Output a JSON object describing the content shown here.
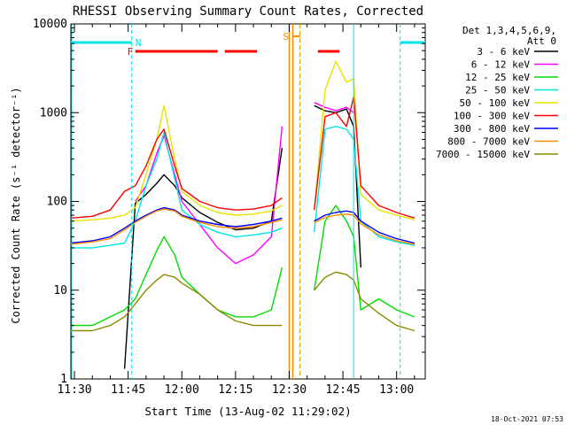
{
  "chart_data": {
    "type": "line",
    "title": "RHESSI Observing Summary Count Rates, Corrected",
    "xlabel": "Start Time (13-Aug-02 11:29:02)",
    "ylabel": "Corrected Count Rate (s⁻¹ detector⁻¹)",
    "yscale": "log",
    "ylim": [
      1,
      10000
    ],
    "xlim": [
      "11:29",
      "13:08"
    ],
    "x_ticks": [
      "11:30",
      "11:45",
      "12:00",
      "12:15",
      "12:30",
      "12:45",
      "13:00"
    ],
    "y_ticks": [
      "1",
      "10",
      "100",
      "1000",
      "10000"
    ],
    "legend_header": [
      "Det 1,3,4,5,6,9,",
      "Att 0"
    ],
    "legend_placement": "right",
    "footer_date": "18-Oct-2021 07:53",
    "flags": [
      {
        "label": "N",
        "color": "#00e5e5"
      },
      {
        "label": "F",
        "color": "#ff0000"
      },
      {
        "label": "S",
        "color": "#ff8c00"
      }
    ],
    "series": [
      {
        "name": "3 - 6 keV",
        "color": "#000000",
        "x": [
          "11:29",
          "11:35",
          "11:40",
          "11:44",
          "11:47",
          "11:50",
          "11:53",
          "11:55",
          "11:58",
          "12:00",
          "12:05",
          "12:10",
          "12:15",
          "12:20",
          "12:25",
          "12:28",
          "12:32",
          "12:37",
          "12:40",
          "12:43",
          "12:46",
          "12:48",
          "12:50",
          "12:55",
          "13:00",
          "13:05"
        ],
        "y": [
          null,
          null,
          null,
          1.3,
          95,
          120,
          160,
          200,
          150,
          110,
          75,
          58,
          48,
          50,
          60,
          400,
          null,
          1200,
          1050,
          1000,
          1100,
          700,
          18,
          null,
          null,
          null
        ]
      },
      {
        "name": "6 - 12 keV",
        "color": "#ff00ff",
        "x": [
          "11:29",
          "11:44",
          "11:47",
          "11:50",
          "11:53",
          "11:55",
          "11:58",
          "12:00",
          "12:05",
          "12:10",
          "12:15",
          "12:20",
          "12:25",
          "12:28",
          "12:32",
          "12:37",
          "12:40",
          "12:43",
          "12:46",
          "12:48",
          "12:50",
          "12:55",
          "13:00",
          "13:05"
        ],
        "y": [
          null,
          null,
          100,
          150,
          350,
          550,
          200,
          100,
          55,
          30,
          20,
          25,
          40,
          700,
          null,
          1300,
          1150,
          1050,
          1150,
          1000,
          null,
          null,
          null,
          null
        ]
      },
      {
        "name": "12 - 25 keV",
        "color": "#00dd00",
        "x": [
          "11:29",
          "11:35",
          "11:40",
          "11:44",
          "11:47",
          "11:50",
          "11:53",
          "11:55",
          "11:58",
          "12:00",
          "12:05",
          "12:10",
          "12:15",
          "12:20",
          "12:25",
          "12:28",
          "12:32",
          "12:37",
          "12:40",
          "12:43",
          "12:46",
          "12:48",
          "12:50",
          "12:55",
          "13:00",
          "13:05"
        ],
        "y": [
          4,
          4,
          5,
          6,
          8,
          15,
          28,
          40,
          25,
          14,
          9,
          6,
          5,
          5,
          6,
          18,
          null,
          10,
          60,
          90,
          60,
          40,
          6,
          8,
          6,
          5
        ]
      },
      {
        "name": "25 - 50 keV",
        "color": "#00e5e5",
        "x": [
          "11:29",
          "11:35",
          "11:40",
          "11:44",
          "11:47",
          "11:50",
          "11:53",
          "11:55",
          "11:58",
          "12:00",
          "12:05",
          "12:10",
          "12:15",
          "12:20",
          "12:25",
          "12:28",
          "12:32",
          "12:37",
          "12:40",
          "12:43",
          "12:46",
          "12:48",
          "12:50",
          "12:55",
          "13:00",
          "13:05"
        ],
        "y": [
          30,
          30,
          32,
          34,
          60,
          150,
          300,
          600,
          180,
          80,
          55,
          45,
          40,
          42,
          45,
          50,
          null,
          45,
          650,
          700,
          650,
          500,
          60,
          40,
          35,
          32
        ]
      },
      {
        "name": "50 - 100 keV",
        "color": "#e5e500",
        "x": [
          "11:29",
          "11:35",
          "11:40",
          "11:44",
          "11:47",
          "11:50",
          "11:53",
          "11:55",
          "11:58",
          "12:00",
          "12:05",
          "12:10",
          "12:15",
          "12:20",
          "12:25",
          "12:28",
          "12:32",
          "12:37",
          "12:40",
          "12:43",
          "12:46",
          "12:48",
          "12:50",
          "12:55",
          "13:00",
          "13:05"
        ],
        "y": [
          60,
          62,
          65,
          70,
          85,
          200,
          500,
          1200,
          300,
          130,
          90,
          75,
          70,
          72,
          78,
          90,
          null,
          80,
          1800,
          3800,
          2200,
          2400,
          120,
          80,
          70,
          62
        ]
      },
      {
        "name": "100 - 300 keV",
        "color": "#ff0000",
        "x": [
          "11:29",
          "11:35",
          "11:40",
          "11:44",
          "11:47",
          "11:50",
          "11:53",
          "11:55",
          "11:58",
          "12:00",
          "12:05",
          "12:10",
          "12:15",
          "12:20",
          "12:25",
          "12:28",
          "12:32",
          "12:37",
          "12:40",
          "12:43",
          "12:46",
          "12:48",
          "12:50",
          "12:55",
          "13:00",
          "13:05"
        ],
        "y": [
          65,
          68,
          80,
          130,
          150,
          250,
          500,
          650,
          250,
          140,
          100,
          85,
          80,
          82,
          90,
          110,
          null,
          80,
          900,
          1000,
          700,
          1500,
          150,
          90,
          75,
          65
        ]
      },
      {
        "name": "300 - 800 keV",
        "color": "#0000ff",
        "x": [
          "11:29",
          "11:35",
          "11:40",
          "11:44",
          "11:47",
          "11:50",
          "11:53",
          "11:55",
          "11:58",
          "12:00",
          "12:05",
          "12:10",
          "12:15",
          "12:20",
          "12:25",
          "12:28",
          "12:32",
          "12:37",
          "12:40",
          "12:43",
          "12:46",
          "12:48",
          "12:50",
          "12:55",
          "13:00",
          "13:05"
        ],
        "y": [
          34,
          36,
          40,
          50,
          60,
          70,
          80,
          85,
          80,
          70,
          60,
          55,
          52,
          55,
          60,
          65,
          null,
          60,
          70,
          75,
          78,
          75,
          60,
          45,
          38,
          34
        ]
      },
      {
        "name": "800 - 7000 keV",
        "color": "#ff8c00",
        "x": [
          "11:29",
          "11:35",
          "11:40",
          "11:44",
          "11:47",
          "11:50",
          "11:53",
          "11:55",
          "11:58",
          "12:00",
          "12:05",
          "12:10",
          "12:15",
          "12:20",
          "12:25",
          "12:28",
          "12:32",
          "12:37",
          "12:40",
          "12:43",
          "12:46",
          "12:48",
          "12:50",
          "12:55",
          "13:00",
          "13:05"
        ],
        "y": [
          33,
          35,
          38,
          48,
          58,
          68,
          78,
          82,
          78,
          68,
          58,
          52,
          50,
          52,
          58,
          62,
          null,
          58,
          66,
          70,
          72,
          70,
          56,
          42,
          36,
          33
        ]
      },
      {
        "name": "7000 - 15000 keV",
        "color": "#8b8b00",
        "x": [
          "11:29",
          "11:35",
          "11:40",
          "11:44",
          "11:47",
          "11:50",
          "11:53",
          "11:55",
          "11:58",
          "12:00",
          "12:05",
          "12:10",
          "12:15",
          "12:20",
          "12:25",
          "12:28",
          "12:32",
          "12:37",
          "12:40",
          "12:43",
          "12:46",
          "12:48",
          "12:50",
          "12:55",
          "13:00",
          "13:05"
        ],
        "y": [
          3.5,
          3.5,
          4,
          5,
          7,
          10,
          13,
          15,
          14,
          12,
          9,
          6,
          4.5,
          4,
          4,
          4,
          null,
          10,
          14,
          16,
          15,
          13,
          8,
          5.5,
          4,
          3.5
        ]
      }
    ]
  }
}
